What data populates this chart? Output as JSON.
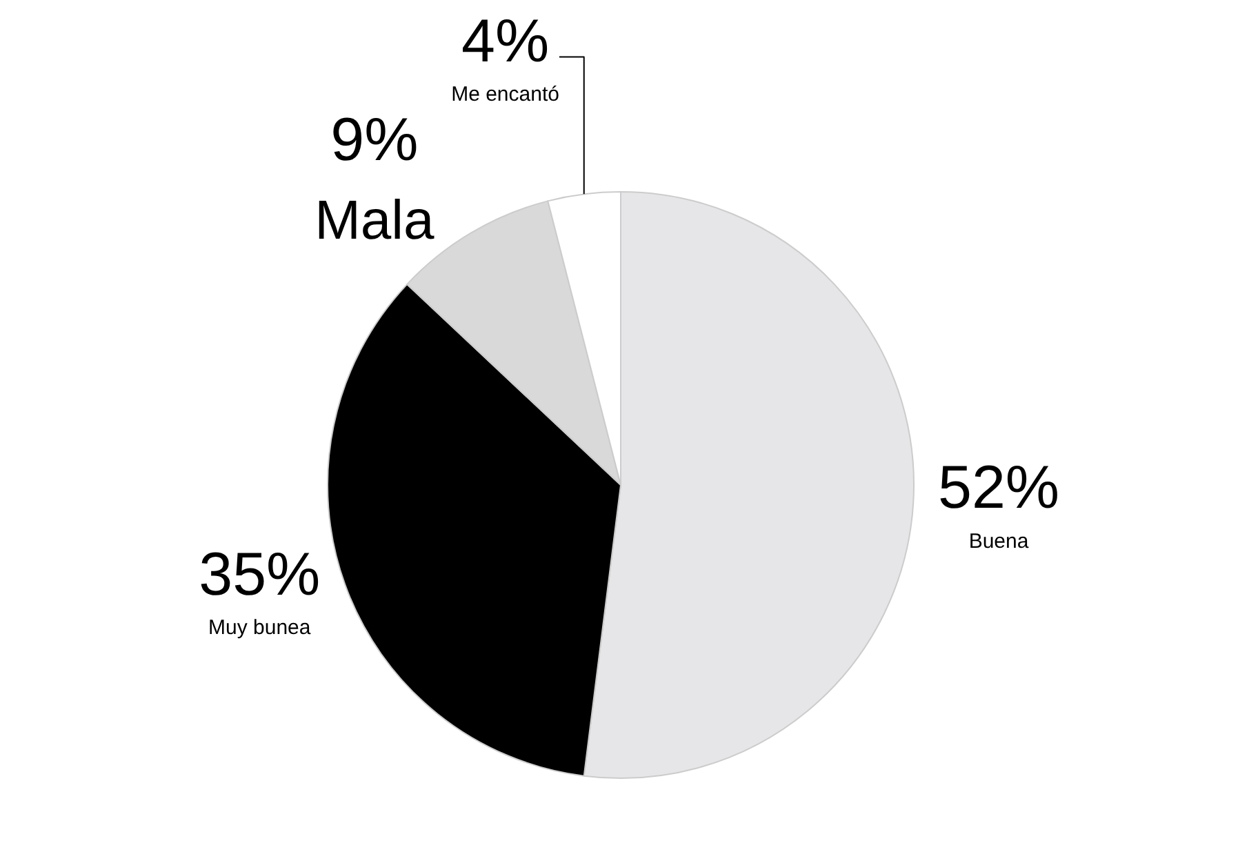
{
  "chart_data": {
    "type": "pie",
    "categories": [
      "Buena",
      "Muy bunea",
      "Mala",
      "Me encantó"
    ],
    "values": [
      52,
      35,
      9,
      4
    ],
    "value_labels": [
      "52%",
      "35%",
      "9%",
      "4%"
    ],
    "colors": [
      "#e6e6e8",
      "#000000",
      "#d9d9d9",
      "#ffffff"
    ],
    "legend": false
  }
}
